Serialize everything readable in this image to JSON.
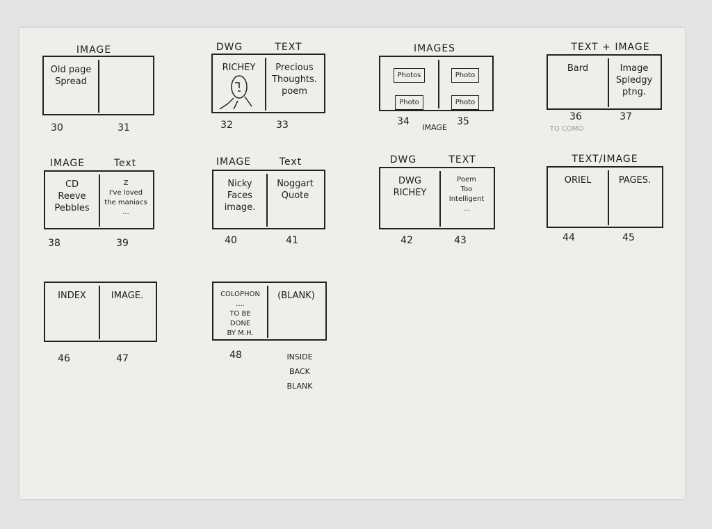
{
  "colors": {
    "paper": "#efefe9",
    "background": "#e3e4e4",
    "ink": "#1c1c1c",
    "pencil": "#9a9a9a"
  },
  "spreads": [
    {
      "titles": [
        "IMAGE"
      ],
      "left": [
        "Old page",
        "Spread"
      ],
      "right": [],
      "pages": [
        "30",
        "31"
      ],
      "notes": []
    },
    {
      "titles": [
        "DWG",
        "TEXT"
      ],
      "left": [
        "RICHEY"
      ],
      "right": [
        "Precious",
        "Thoughts.",
        "poem"
      ],
      "pages": [
        "32",
        "33"
      ],
      "notes": [],
      "drawing": "face-sketch"
    },
    {
      "titles": [
        "IMAGES"
      ],
      "left": [
        "Photos",
        "Photo"
      ],
      "right": [
        "Photo",
        "Photo"
      ],
      "pages": [
        "34",
        "35"
      ],
      "notes": [
        "IMAGE"
      ],
      "photo_boxes": true
    },
    {
      "titles": [
        "TEXT + IMAGE"
      ],
      "left": [
        "Bard"
      ],
      "right": [
        "Image",
        "Spledgy",
        "ptng."
      ],
      "pages": [
        "36",
        "37"
      ],
      "notes": [
        "TO COMO"
      ]
    },
    {
      "titles": [
        "IMAGE",
        "Text"
      ],
      "left": [
        "CD",
        "Reeve",
        "Pebbles"
      ],
      "right": [
        "Z",
        "I've loved",
        "the maniacs",
        "..."
      ],
      "pages": [
        "38",
        "39"
      ],
      "notes": []
    },
    {
      "titles": [
        "IMAGE",
        "Text"
      ],
      "left": [
        "Nicky",
        "Faces",
        "image."
      ],
      "right": [
        "Noggart",
        "Quote"
      ],
      "pages": [
        "40",
        "41"
      ],
      "notes": []
    },
    {
      "titles": [
        "DWG",
        "TEXT"
      ],
      "left": [
        "DWG",
        "RICHEY"
      ],
      "right": [
        "Poem",
        "Too",
        "Intelligent",
        "..."
      ],
      "pages": [
        "42",
        "43"
      ],
      "notes": []
    },
    {
      "titles": [
        "TEXT/IMAGE"
      ],
      "left": [
        "ORIEL"
      ],
      "right": [
        "PAGES."
      ],
      "pages": [
        "44",
        "45"
      ],
      "notes": []
    },
    {
      "titles": [],
      "left": [
        "INDEX"
      ],
      "right": [
        "IMAGE."
      ],
      "pages": [
        "46",
        "47"
      ],
      "notes": []
    },
    {
      "titles": [],
      "left": [
        "COLOPHON",
        "....",
        "TO BE",
        "DONE",
        "BY M.H."
      ],
      "right": [
        "(BLANK)"
      ],
      "pages": [
        "48"
      ],
      "notes": [
        "INSIDE",
        "BACK",
        "BLANK"
      ]
    }
  ]
}
